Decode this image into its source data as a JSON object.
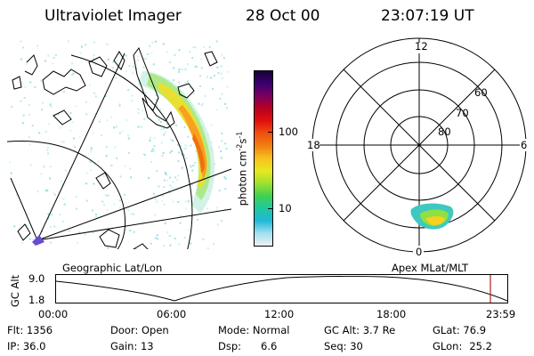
{
  "header": {
    "title": "Ultraviolet Imager",
    "date": "28 Oct 00",
    "time": "23:07:19 UT"
  },
  "colorbar": {
    "unit_label": "photon cm",
    "unit_exp1": "-2",
    "unit_s": "s",
    "unit_exp2": "-1",
    "tick_top": "100",
    "tick_bottom": "10",
    "colors": [
      "#1a0038",
      "#3a0070",
      "#7a0060",
      "#b80020",
      "#e01010",
      "#f05010",
      "#f08010",
      "#f8c020",
      "#e8e820",
      "#a0e030",
      "#40d050",
      "#20c8a0",
      "#20b8d8",
      "#a0e0f0",
      "#f0f0f0"
    ]
  },
  "map_labels": {
    "left": "Geographic Lat/Lon",
    "right": "Apex MLat/MLT"
  },
  "polar": {
    "mlt_top": "12",
    "mlt_left": "18",
    "mlt_right": "6",
    "mlt_bottom": "0",
    "lat_60": "60",
    "lat_70": "70",
    "lat_80": "80"
  },
  "altitude_plot": {
    "ylabel": "GC Alt",
    "y_top": "9.0",
    "y_bottom": "1.8",
    "x_ticks": [
      "00:00",
      "06:00",
      "12:00",
      "18:00",
      "23:59"
    ]
  },
  "info": {
    "flt_label": "Flt:",
    "flt_value": "1356",
    "ip_label": "IP:",
    "ip_value": "36.0",
    "door_label": "Door:",
    "door_value": "Open",
    "gain_label": "Gain:",
    "gain_value": "13",
    "mode_label": "Mode:",
    "mode_value": "Normal",
    "dsp_label": "Dsp:",
    "dsp_value": "6.6",
    "gcalt_label": "GC Alt:",
    "gcalt_value": "3.7 Re",
    "seq_label": "Seq:",
    "seq_value": "30",
    "glat_label": "GLat:",
    "glat_value": "76.9",
    "glon_label": "GLon:",
    "glon_value": "25.2"
  }
}
